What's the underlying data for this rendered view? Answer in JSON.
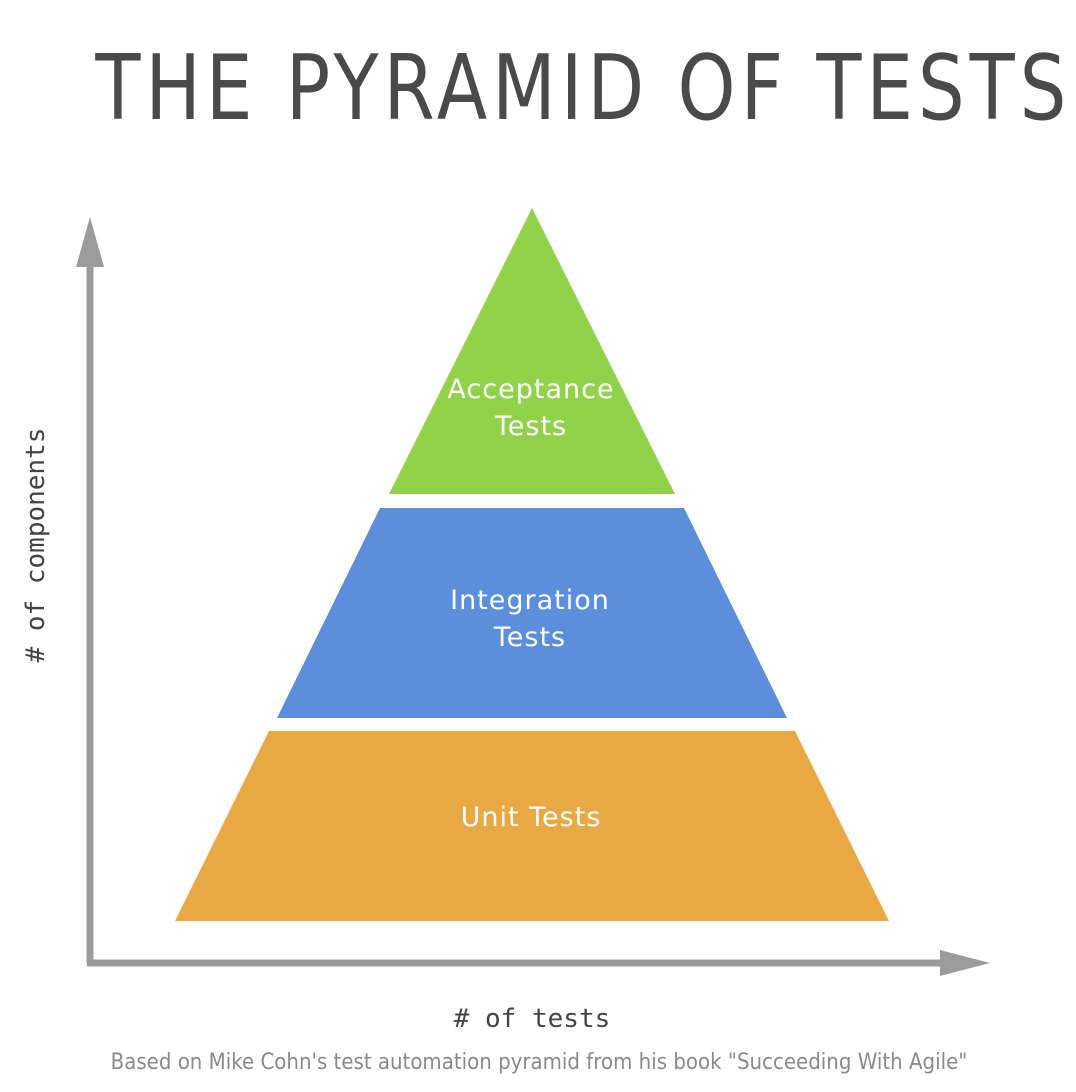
{
  "title": "THE PYRAMID OF TESTS",
  "tiers": [
    {
      "lines": [
        "Acceptance",
        "Tests"
      ],
      "color": "#92d14a"
    },
    {
      "lines": [
        "Integration",
        "Tests"
      ],
      "color": "#5b8edb"
    },
    {
      "lines": [
        "Unit Tests"
      ],
      "color": "#e8a843"
    }
  ],
  "y_axis_label": "# of components",
  "x_axis_label": "# of tests",
  "axis_color": "#9b9b9b",
  "footer": "Based on Mike Cohn's test automation pyramid from his book \"Succeeding With Agile\""
}
